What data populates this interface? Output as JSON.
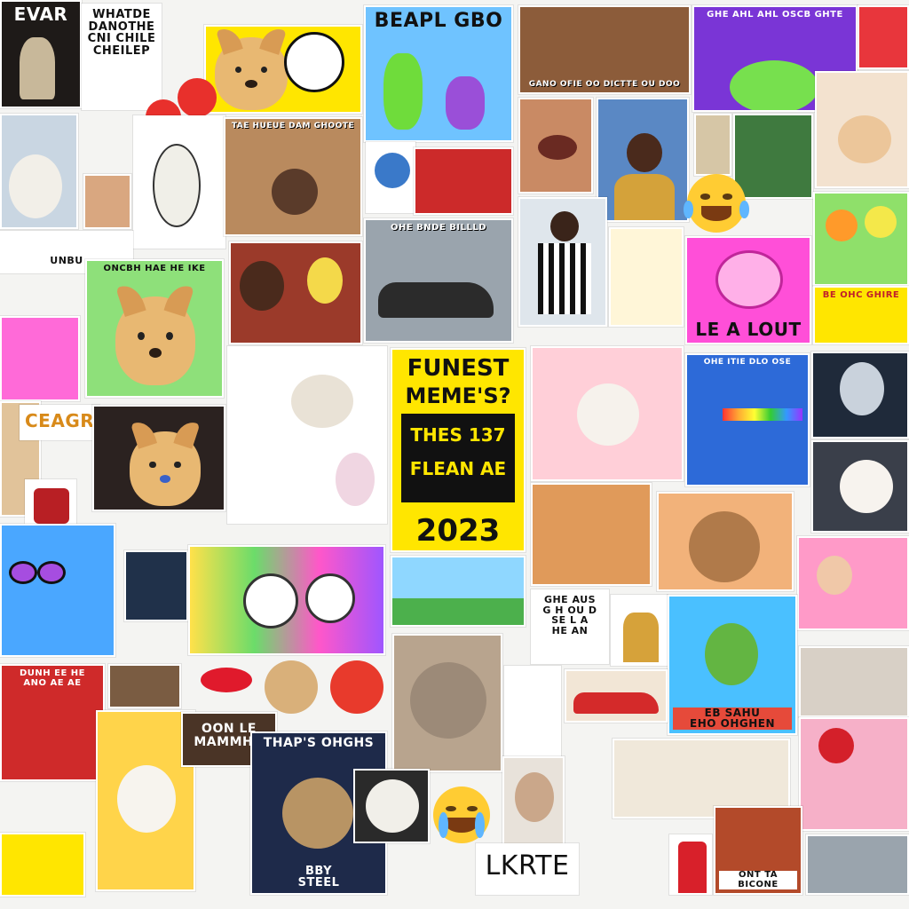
{
  "palette": {
    "background": "#f4f4f2",
    "yellow": "#ffe600",
    "black": "#111111",
    "pink": "#ff4fd8",
    "green": "#7ddc6a",
    "blue": "#4aa7ff",
    "purple": "#7a35d6"
  },
  "center_poster": {
    "line1": "FUNEST",
    "line2": "MEME'S?",
    "line3": "THES 137",
    "line4": "FLEAN AE",
    "year": "2023"
  },
  "captions": {
    "t1": "EVAR",
    "t2": "WHATDE\nDANOTHE\nCNI  CHILE\nCHEILEP",
    "t3": "BEAPL GBO",
    "t4": "GANO OFIE  OO  DICTTE  OU  DOO",
    "t5": "LE A LOUT",
    "t6": "CEAGR",
    "t7": "OON LE\nMAMMHO",
    "t8": "THAP'S OHGHS",
    "t9": "LKRTE",
    "t10": "BBY\nSTEEL",
    "t11": "ONT TA BICONE",
    "t12": "GHE AHL AHL OSCB GHTE",
    "t13": "TAE HUEUE DAM GHOOTE",
    "t14": "ONCBH HAE HE IKE",
    "t15": "OHE BNDE BILLLD",
    "t16": "UNBU",
    "t17": "BE OHC GHIRE",
    "t18": "GHE AUS\nG H OU D\nSE L A\nHE AN",
    "t19": "EB SAHU\nEHO OHGHEN",
    "t20": "OHE ITIE DLO OSE",
    "t21": "DUNH EE HE\nANO AE AE"
  }
}
